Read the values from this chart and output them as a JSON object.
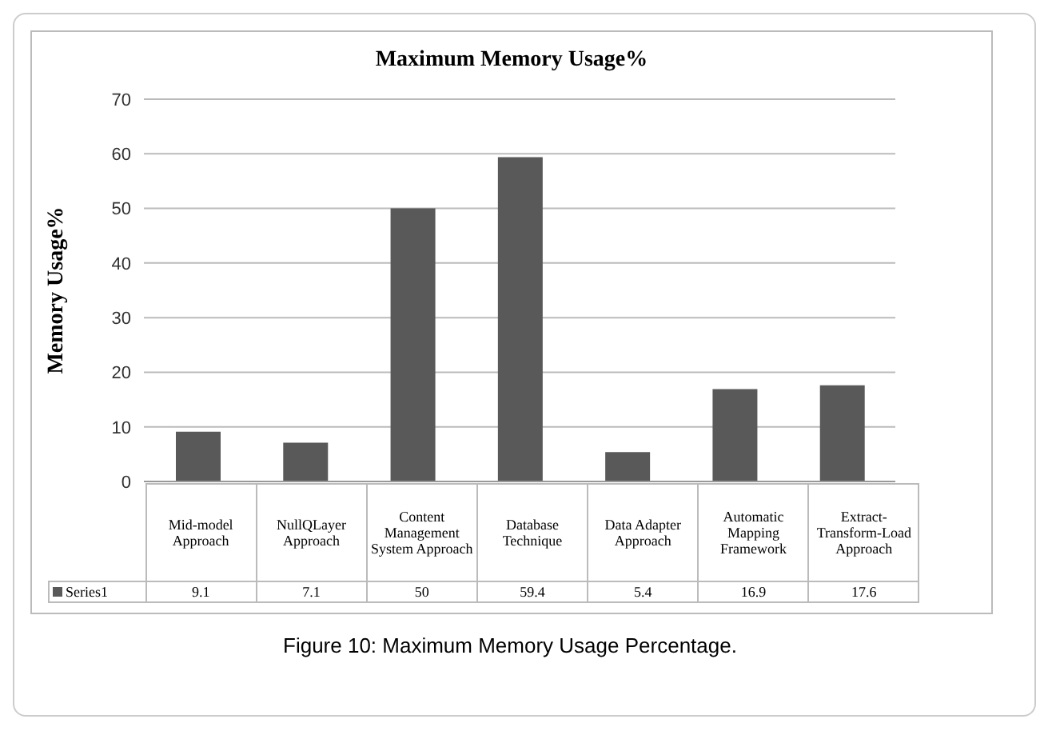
{
  "chart_data": {
    "type": "bar",
    "title": "Maximum Memory Usage%",
    "ylabel": "Memory Usage%",
    "categories": [
      "Mid-model Approach",
      "NullQLayer Approach",
      "Content Management System Approach",
      "Database Technique",
      "Data Adapter Approach",
      "Automatic Mapping Framework",
      "Extract-Transform-Load Approach"
    ],
    "series": [
      {
        "name": "Series1",
        "color": "#595959",
        "values": [
          9.1,
          7.1,
          50,
          59.4,
          5.4,
          16.9,
          17.6
        ]
      }
    ],
    "ylim": [
      0,
      70
    ],
    "yticks": [
      0,
      10,
      20,
      30,
      40,
      50,
      60,
      70
    ],
    "grid": "y",
    "legend": "bottom",
    "data_labels": true,
    "annotations": [
      "Figure 10: Maximum Memory Usage Percentage."
    ]
  }
}
